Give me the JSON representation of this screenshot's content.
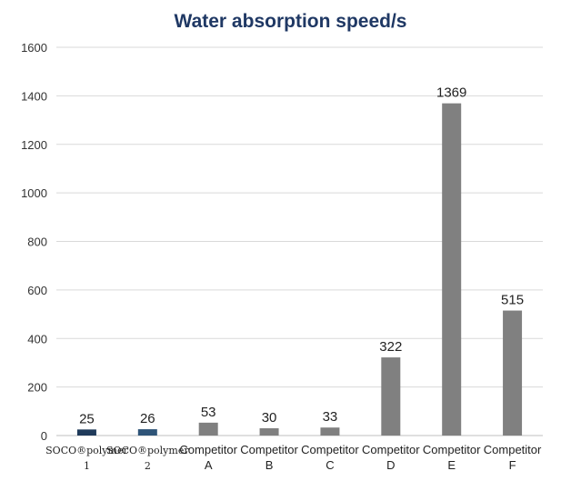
{
  "chart_data": {
    "type": "bar",
    "title": "Water absorption speed/s",
    "categories": [
      [
        "SOCO®polymer",
        "1"
      ],
      [
        "SOCO®polymer",
        "2"
      ],
      [
        "Competitor",
        "A"
      ],
      [
        "Competitor",
        "B"
      ],
      [
        "Competitor",
        "C"
      ],
      [
        "Competitor",
        "D"
      ],
      [
        "Competitor",
        "E"
      ],
      [
        "Competitor",
        "F"
      ]
    ],
    "values": [
      25,
      26,
      53,
      30,
      33,
      322,
      1369,
      515
    ],
    "bar_colors": [
      "#1f3a5a",
      "#2e5478",
      "#808080",
      "#808080",
      "#808080",
      "#808080",
      "#808080",
      "#808080"
    ],
    "ylim": [
      0,
      1600
    ],
    "yticks": [
      0,
      200,
      400,
      600,
      800,
      1000,
      1200,
      1400,
      1600
    ],
    "grid": true,
    "xlabel": "",
    "ylabel": ""
  }
}
